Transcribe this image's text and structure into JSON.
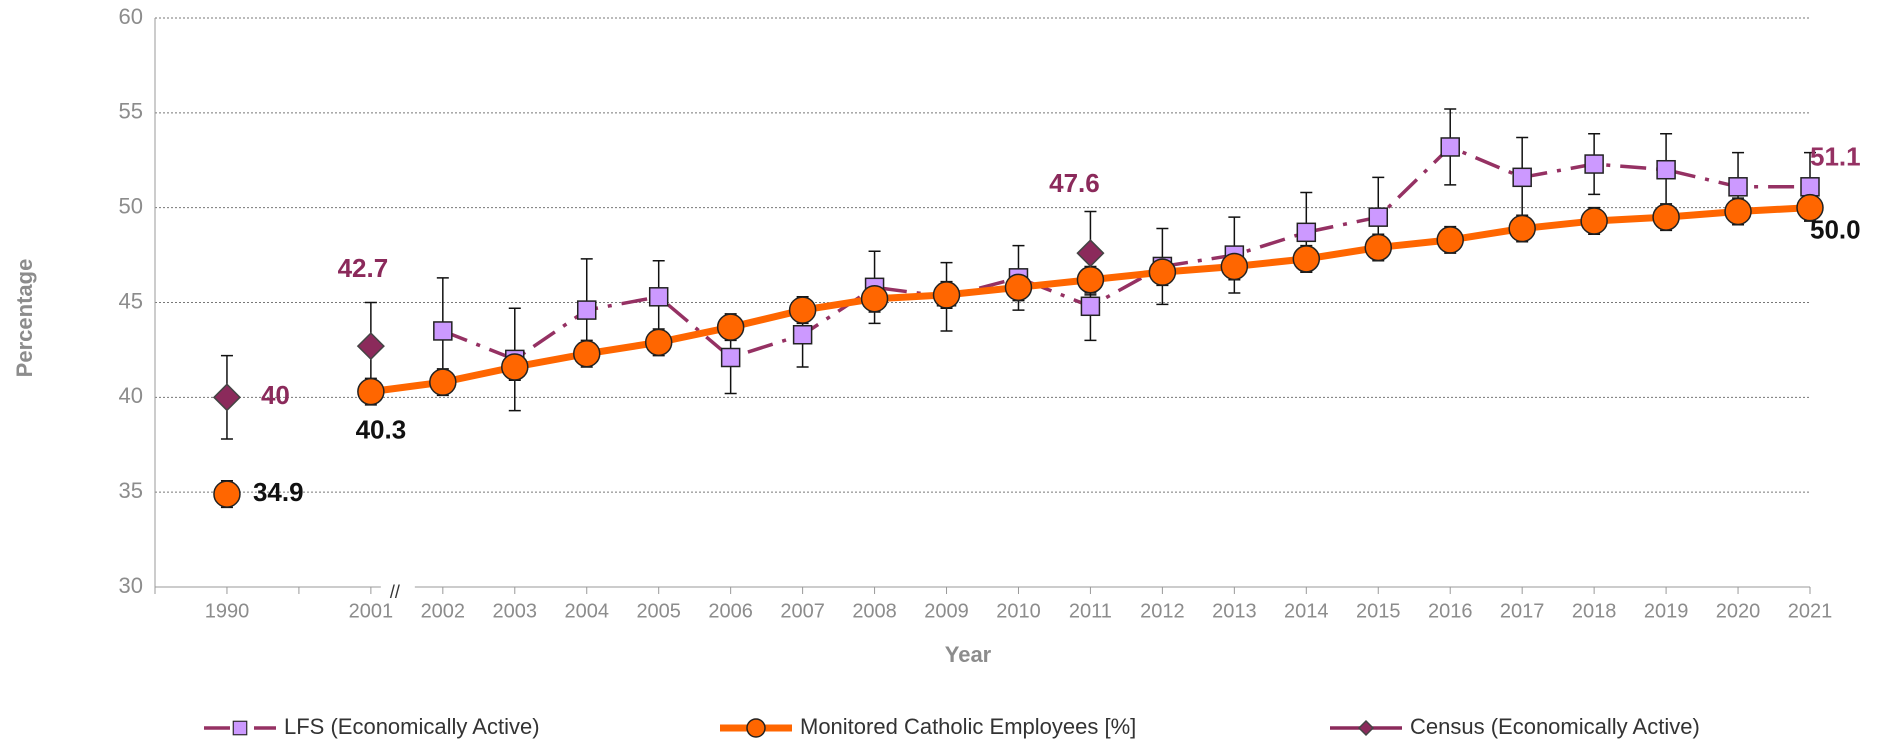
{
  "chart_data": {
    "type": "line",
    "x_label": "Year",
    "y_label": "Percentage",
    "axis_break": "//",
    "categories": [
      "1990",
      null,
      "2001",
      "2002",
      "2003",
      "2004",
      "2005",
      "2006",
      "2007",
      "2008",
      "2009",
      "2010",
      "2011",
      "2012",
      "2013",
      "2014",
      "2015",
      "2016",
      "2017",
      "2018",
      "2019",
      "2020",
      "2021"
    ],
    "ylim": [
      30,
      60
    ],
    "yticks": [
      30,
      35,
      40,
      45,
      50,
      55,
      60
    ],
    "grid": true,
    "legend": "bottom",
    "series": [
      {
        "name": "LFS (Economically Active)",
        "color": "#953163",
        "marker_color": "#cc99ff",
        "marker": "square",
        "line": "dashdot",
        "values": [
          null,
          null,
          null,
          43.5,
          42.0,
          44.6,
          45.3,
          42.1,
          43.3,
          45.8,
          45.3,
          46.3,
          44.8,
          46.9,
          47.5,
          48.7,
          49.5,
          53.2,
          51.6,
          52.3,
          52.0,
          51.1,
          51.1
        ],
        "errors": [
          null,
          null,
          null,
          2.8,
          2.7,
          2.7,
          1.9,
          1.9,
          1.7,
          1.9,
          1.8,
          1.7,
          1.8,
          2.0,
          2.0,
          2.1,
          2.1,
          2.0,
          2.1,
          1.6,
          1.9,
          1.8,
          1.8
        ],
        "value_labels": [
          null,
          null,
          null,
          null,
          null,
          null,
          null,
          null,
          null,
          null,
          null,
          null,
          null,
          null,
          null,
          null,
          null,
          null,
          null,
          null,
          null,
          null,
          "51.1"
        ]
      },
      {
        "name": "Monitored Catholic Employees [%]",
        "color": "#ff6600",
        "marker_color": "#ff6600",
        "marker": "circle",
        "line": "solid",
        "values": [
          34.9,
          null,
          40.3,
          40.8,
          41.6,
          42.3,
          42.9,
          43.7,
          44.6,
          45.2,
          45.4,
          45.8,
          46.2,
          46.6,
          46.9,
          47.3,
          47.9,
          48.3,
          48.9,
          49.3,
          49.5,
          49.8,
          50.0
        ],
        "errors": [
          0.7,
          null,
          0.7,
          0.7,
          0.7,
          0.7,
          0.7,
          0.7,
          0.7,
          0.7,
          0.7,
          0.7,
          0.7,
          0.7,
          0.7,
          0.7,
          0.7,
          0.7,
          0.7,
          0.7,
          0.7,
          0.7,
          0.7
        ],
        "value_labels": [
          "34.9",
          null,
          "40.3",
          null,
          null,
          null,
          null,
          null,
          null,
          null,
          null,
          null,
          null,
          null,
          null,
          null,
          null,
          null,
          null,
          null,
          null,
          null,
          "50.0"
        ]
      },
      {
        "name": "Census (Economically Active)",
        "color": "#8b2a5b",
        "marker_color": "#8b2a5b",
        "marker": "diamond",
        "line": "solid",
        "values": [
          40,
          null,
          42.7,
          null,
          null,
          null,
          null,
          null,
          null,
          null,
          null,
          null,
          47.6,
          null,
          null,
          null,
          null,
          null,
          null,
          null,
          null,
          null,
          null
        ],
        "errors": [
          2.2,
          null,
          2.3,
          null,
          null,
          null,
          null,
          null,
          null,
          null,
          null,
          null,
          2.2,
          null,
          null,
          null,
          null,
          null,
          null,
          null,
          null,
          null,
          null
        ],
        "value_labels": [
          "40",
          null,
          "42.7",
          null,
          null,
          null,
          null,
          null,
          null,
          null,
          null,
          null,
          "47.6",
          null,
          null,
          null,
          null,
          null,
          null,
          null,
          null,
          null,
          null
        ]
      }
    ]
  }
}
